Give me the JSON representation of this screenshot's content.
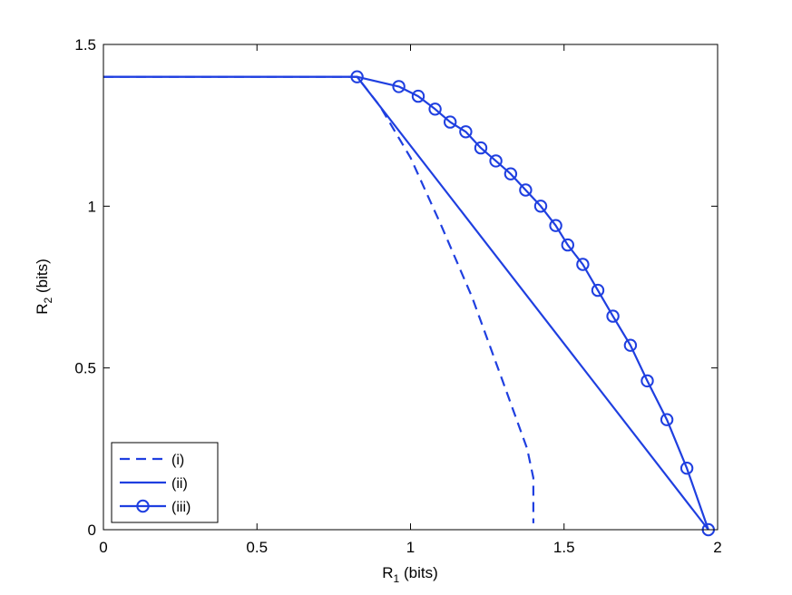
{
  "chart_data": {
    "type": "line",
    "title": "",
    "xlabel": {
      "main": "R",
      "sub": "1",
      "unit": " (bits)"
    },
    "ylabel": {
      "main": "R",
      "sub": "2",
      "unit": " (bits)"
    },
    "xlim": [
      0,
      2
    ],
    "ylim": [
      0,
      1.5
    ],
    "xticks": [
      0,
      0.5,
      1,
      1.5,
      2
    ],
    "xtick_labels": [
      "0",
      "0.5",
      "1",
      "1.5",
      "2"
    ],
    "yticks": [
      0,
      0.5,
      1,
      1.5
    ],
    "ytick_labels": [
      "0",
      "0.5",
      "1",
      "1.5"
    ],
    "grid": false,
    "legend_position": "bottom-left",
    "line_color": "#1f3fe0",
    "series": [
      {
        "name": "(i)",
        "style": "dashed",
        "marker": "none",
        "x": [
          0,
          0.826,
          0.9,
          1.0,
          1.1,
          1.2,
          1.3,
          1.38,
          1.4,
          1.4
        ],
        "y": [
          1.4,
          1.4,
          1.31,
          1.15,
          0.94,
          0.72,
          0.46,
          0.25,
          0.16,
          0.02
        ]
      },
      {
        "name": "(ii)",
        "style": "solid",
        "marker": "none",
        "x": [
          0,
          0.826,
          1.97
        ],
        "y": [
          1.4,
          1.4,
          0
        ]
      },
      {
        "name": "(iii)",
        "style": "solid",
        "marker": "circle",
        "x": [
          0,
          0.826,
          0.962,
          1.025,
          1.08,
          1.129,
          1.18,
          1.229,
          1.278,
          1.326,
          1.375,
          1.424,
          1.473,
          1.512,
          1.561,
          1.61,
          1.659,
          1.716,
          1.771,
          1.835,
          1.9,
          1.97
        ],
        "y": [
          1.4,
          1.4,
          1.37,
          1.34,
          1.3,
          1.26,
          1.23,
          1.18,
          1.14,
          1.1,
          1.05,
          1.0,
          0.94,
          0.88,
          0.82,
          0.74,
          0.66,
          0.57,
          0.46,
          0.34,
          0.19,
          0.0
        ],
        "marker_start_index": 1
      }
    ]
  }
}
